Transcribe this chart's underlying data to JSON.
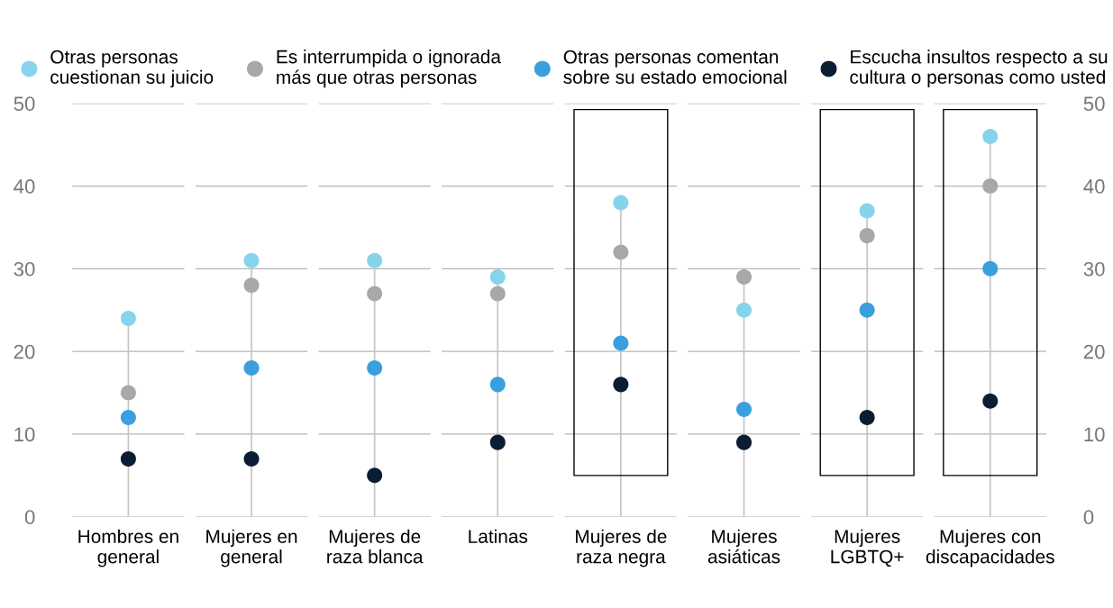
{
  "chart_data": {
    "type": "scatter",
    "categories": [
      "Hombres en\ngeneral",
      "Mujeres en\ngeneral",
      "Mujeres de\nraza blanca",
      "Latinas",
      "Mujeres de\nraza negra",
      "Mujeres\nasiáticas",
      "Mujeres\nLGBTQ+",
      "Mujeres con\ndiscapacidades"
    ],
    "series": [
      {
        "name": "Otras personas\ncuestionan su juicio",
        "color": "#86d3ec",
        "values": [
          24,
          31,
          31,
          29,
          38,
          25,
          37,
          46
        ]
      },
      {
        "name": "Es interrumpida o ignorada\nmás que otras personas",
        "color": "#a8a8a8",
        "values": [
          15,
          28,
          27,
          27,
          32,
          29,
          34,
          40
        ]
      },
      {
        "name": "Otras personas comentan\nsobre su estado emocional",
        "color": "#3a9fdd",
        "values": [
          12,
          18,
          18,
          16,
          21,
          13,
          25,
          30
        ]
      },
      {
        "name": "Escucha insultos respecto a su\ncultura o personas como usted",
        "color": "#0b1d33",
        "values": [
          7,
          7,
          5,
          9,
          16,
          9,
          12,
          14
        ]
      }
    ],
    "ylim": [
      0,
      50
    ],
    "yticks": [
      0,
      10,
      20,
      30,
      40,
      50
    ],
    "y2lim": [
      0,
      50
    ],
    "y2ticks": [
      0,
      10,
      20,
      30,
      40,
      50
    ],
    "grid": true,
    "legend": "top",
    "marker": "circle"
  }
}
